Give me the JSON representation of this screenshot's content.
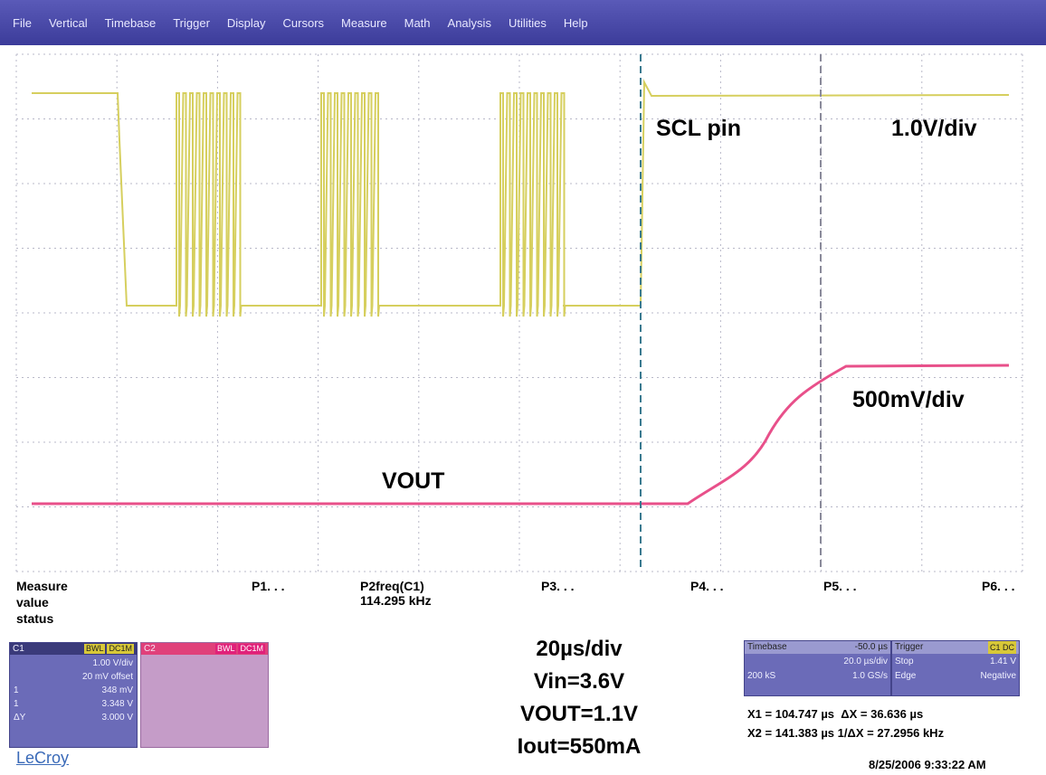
{
  "menu": [
    "File",
    "Vertical",
    "Timebase",
    "Trigger",
    "Display",
    "Cursors",
    "Measure",
    "Math",
    "Analysis",
    "Utilities",
    "Help"
  ],
  "screen_labels": {
    "scl_pin": "SCL pin",
    "ch1_scale": "1.0V/div",
    "ch2_scale": "500mV/div",
    "vout": "VOUT"
  },
  "measure": {
    "header": [
      "Measure",
      "value",
      "status"
    ],
    "params": [
      "P1. . .",
      "P2freq(C1)",
      "P3. . .",
      "P4. . .",
      "P5. . .",
      "P6. . ."
    ],
    "p2_value": "114.295 kHz"
  },
  "channel_1": {
    "name": "C1",
    "tags": [
      "BWL",
      "DC1M"
    ],
    "rows": [
      "1.00 V/div",
      "20 mV offset",
      "348 mV",
      "3.348 V",
      "3.000 V"
    ],
    "row_keys": [
      "1",
      "1",
      "ΔY"
    ]
  },
  "channel_2": {
    "name": "C2",
    "tags": [
      "BWL",
      "DC1M"
    ]
  },
  "conditions": [
    "20µs/div",
    "Vin=3.6V",
    "VOUT=1.1V",
    "Iout=550mA"
  ],
  "timebase": {
    "title": "Timebase",
    "delay": "-50.0 µs",
    "scale": "20.0 µs/div",
    "samples": "200 kS",
    "rate": "1.0 GS/s"
  },
  "trigger": {
    "title": "Trigger",
    "source": "C1 DC",
    "mode": "Stop",
    "level": "1.41 V",
    "type": "Edge",
    "slope": "Negative"
  },
  "cursors": [
    [
      "X1 = 104.747 µs",
      "ΔX = 36.636 µs"
    ],
    [
      "X2 = 141.383 µs",
      "1/ΔX = 27.2956 kHz"
    ]
  ],
  "timestamp": "8/25/2006 9:33:22 AM",
  "logo": "LeCroy"
}
